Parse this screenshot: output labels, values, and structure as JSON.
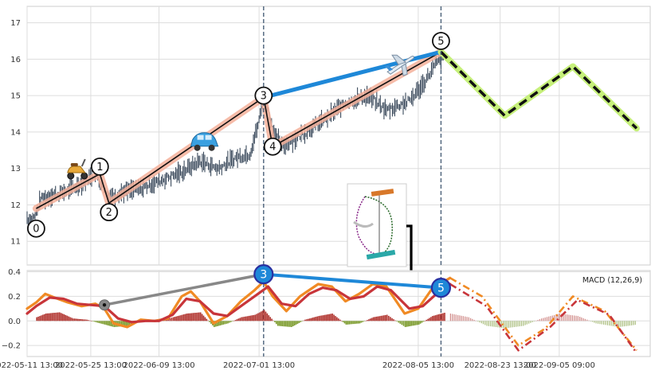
{
  "chart_data": [
    {
      "type": "candlestick",
      "panel": "price",
      "ylim": [
        10.35,
        17.45
      ],
      "y_ticks": [
        11,
        12,
        13,
        14,
        15,
        16,
        17
      ],
      "grid": true,
      "series": [
        {
          "name": "",
          "kind": "price-bars-approx",
          "points": [
            [
              "2022-05-11",
              11.65
            ],
            [
              "2022-05-12",
              11.55
            ],
            [
              "2022-05-13",
              11.75
            ],
            [
              "2022-05-14",
              12.15
            ],
            [
              "2022-05-15",
              12.2
            ],
            [
              "2022-05-16",
              12.25
            ],
            [
              "2022-05-18",
              12.3
            ],
            [
              "2022-05-21",
              12.45
            ],
            [
              "2022-05-23",
              12.6
            ],
            [
              "2022-05-26",
              12.85
            ],
            [
              "2022-05-29",
              12.2
            ],
            [
              "2022-06-01",
              12.35
            ],
            [
              "2022-06-05",
              12.45
            ],
            [
              "2022-06-09",
              12.65
            ],
            [
              "2022-06-14",
              12.9
            ],
            [
              "2022-06-18",
              13.2
            ],
            [
              "2022-06-22",
              13.0
            ],
            [
              "2022-06-26",
              13.3
            ],
            [
              "2022-06-29",
              13.4
            ],
            [
              "2022-07-01",
              14.3
            ],
            [
              "2022-07-02",
              15.05
            ],
            [
              "2022-07-04",
              14.1
            ],
            [
              "2022-07-06",
              13.6
            ],
            [
              "2022-07-10",
              13.9
            ],
            [
              "2022-07-15",
              14.3
            ],
            [
              "2022-07-20",
              14.8
            ],
            [
              "2022-07-25",
              15.0
            ],
            [
              "2022-07-29",
              14.6
            ],
            [
              "2022-08-03",
              14.85
            ],
            [
              "2022-08-06",
              15.3
            ],
            [
              "2022-08-09",
              15.9
            ],
            [
              "2022-08-11",
              16.1
            ]
          ]
        }
      ],
      "overlays": {
        "wave_path": {
          "points": [
            [
              "2022-05-13",
              11.9
            ],
            [
              "2022-05-27",
              12.85
            ],
            [
              "2022-05-29",
              12.05
            ],
            [
              "2022-07-02",
              14.95
            ],
            [
              "2022-07-04",
              13.6
            ],
            [
              "2022-08-10",
              16.2
            ]
          ]
        },
        "wave_labels": [
          {
            "text": "0",
            "x": "2022-05-13",
            "y": 11.35
          },
          {
            "text": "1",
            "x": "2022-05-27",
            "y": 13.05
          },
          {
            "text": "2",
            "x": "2022-05-29",
            "y": 11.8
          },
          {
            "text": "3",
            "x": "2022-07-02",
            "y": 15.0
          },
          {
            "text": "4",
            "x": "2022-07-04",
            "y": 13.6
          },
          {
            "text": "5",
            "x": "2022-08-10",
            "y": 16.5
          }
        ],
        "projection": {
          "style": "dashed",
          "points": [
            [
              "2022-08-10",
              16.2
            ],
            [
              "2022-08-24",
              14.45
            ],
            [
              "2022-09-08",
              15.8
            ],
            [
              "2022-09-22",
              14.1
            ]
          ]
        },
        "connector": {
          "points": [
            [
              "2022-07-02",
              14.95
            ],
            [
              "2022-08-10",
              16.2
            ]
          ]
        },
        "vertical_markers": [
          "2022-07-02",
          "2022-08-10"
        ],
        "emoji_markers": [
          {
            "icon": "scooter",
            "x": "2022-05-22",
            "y": 12.95
          },
          {
            "icon": "car",
            "x": "2022-06-19",
            "y": 13.7
          },
          {
            "icon": "airplane",
            "x": "2022-08-01",
            "y": 15.85
          }
        ]
      }
    },
    {
      "type": "line",
      "panel": "indicator",
      "legend_text": "MACD (12,26,9)",
      "legend_position": "top-right",
      "ylim": [
        -0.29,
        0.41
      ],
      "y_ticks": [
        0.4,
        0.2,
        0.0,
        -0.2
      ],
      "y_tick_labels": [
        "0.4",
        "0.2",
        "0.0",
        "−0.2"
      ],
      "grid": true,
      "series": [
        {
          "name": "",
          "color": "#f08a24",
          "points": [
            [
              "2022-05-11",
              0.1
            ],
            [
              "2022-05-13",
              0.15
            ],
            [
              "2022-05-15",
              0.22
            ],
            [
              "2022-05-17",
              0.19
            ],
            [
              "2022-05-20",
              0.15
            ],
            [
              "2022-05-23",
              0.12
            ],
            [
              "2022-05-26",
              0.14
            ],
            [
              "2022-05-28",
              0.1
            ],
            [
              "2022-05-30",
              -0.02
            ],
            [
              "2022-06-02",
              -0.05
            ],
            [
              "2022-06-05",
              0.01
            ],
            [
              "2022-06-08",
              0.0
            ],
            [
              "2022-06-11",
              0.02
            ],
            [
              "2022-06-14",
              0.2
            ],
            [
              "2022-06-16",
              0.24
            ],
            [
              "2022-06-18",
              0.16
            ],
            [
              "2022-06-21",
              -0.02
            ],
            [
              "2022-06-24",
              0.04
            ],
            [
              "2022-06-27",
              0.16
            ],
            [
              "2022-06-30",
              0.25
            ],
            [
              "2022-07-02",
              0.32
            ],
            [
              "2022-07-04",
              0.2
            ],
            [
              "2022-07-07",
              0.08
            ],
            [
              "2022-07-10",
              0.2
            ],
            [
              "2022-07-14",
              0.3
            ],
            [
              "2022-07-17",
              0.28
            ],
            [
              "2022-07-20",
              0.16
            ],
            [
              "2022-07-23",
              0.22
            ],
            [
              "2022-07-26",
              0.3
            ],
            [
              "2022-07-29",
              0.28
            ],
            [
              "2022-08-02",
              0.06
            ],
            [
              "2022-08-05",
              0.1
            ],
            [
              "2022-08-08",
              0.26
            ],
            [
              "2022-08-12",
              0.35
            ]
          ]
        },
        {
          "name": "",
          "color": "#c8353a",
          "points": [
            [
              "2022-05-11",
              0.06
            ],
            [
              "2022-05-13",
              0.12
            ],
            [
              "2022-05-16",
              0.19
            ],
            [
              "2022-05-19",
              0.18
            ],
            [
              "2022-05-22",
              0.14
            ],
            [
              "2022-05-25",
              0.13
            ],
            [
              "2022-05-28",
              0.12
            ],
            [
              "2022-05-31",
              0.02
            ],
            [
              "2022-06-03",
              -0.01
            ],
            [
              "2022-06-06",
              0.0
            ],
            [
              "2022-06-09",
              0.0
            ],
            [
              "2022-06-12",
              0.05
            ],
            [
              "2022-06-15",
              0.18
            ],
            [
              "2022-06-18",
              0.16
            ],
            [
              "2022-06-21",
              0.06
            ],
            [
              "2022-06-24",
              0.04
            ],
            [
              "2022-06-27",
              0.12
            ],
            [
              "2022-06-30",
              0.2
            ],
            [
              "2022-07-03",
              0.28
            ],
            [
              "2022-07-06",
              0.14
            ],
            [
              "2022-07-09",
              0.12
            ],
            [
              "2022-07-12",
              0.22
            ],
            [
              "2022-07-15",
              0.27
            ],
            [
              "2022-07-18",
              0.25
            ],
            [
              "2022-07-21",
              0.18
            ],
            [
              "2022-07-24",
              0.2
            ],
            [
              "2022-07-27",
              0.28
            ],
            [
              "2022-07-30",
              0.25
            ],
            [
              "2022-08-03",
              0.1
            ],
            [
              "2022-08-06",
              0.12
            ],
            [
              "2022-08-09",
              0.22
            ],
            [
              "2022-08-12",
              0.3
            ]
          ]
        }
      ],
      "histogram_approx": [
        [
          "2022-05-13",
          0.03
        ],
        [
          "2022-05-15",
          0.06
        ],
        [
          "2022-05-18",
          0.07
        ],
        [
          "2022-05-21",
          0.02
        ],
        [
          "2022-05-24",
          0.01
        ],
        [
          "2022-05-27",
          -0.02
        ],
        [
          "2022-05-30",
          -0.05
        ],
        [
          "2022-06-02",
          -0.04
        ],
        [
          "2022-06-05",
          0.01
        ],
        [
          "2022-06-08",
          -0.01
        ],
        [
          "2022-06-12",
          0.03
        ],
        [
          "2022-06-15",
          0.06
        ],
        [
          "2022-06-18",
          0.07
        ],
        [
          "2022-06-21",
          -0.05
        ],
        [
          "2022-06-24",
          -0.02
        ],
        [
          "2022-06-27",
          0.03
        ],
        [
          "2022-06-30",
          0.05
        ],
        [
          "2022-07-02",
          0.09
        ],
        [
          "2022-07-05",
          -0.04
        ],
        [
          "2022-07-08",
          -0.05
        ],
        [
          "2022-07-11",
          0.01
        ],
        [
          "2022-07-14",
          0.04
        ],
        [
          "2022-07-17",
          0.06
        ],
        [
          "2022-07-20",
          -0.03
        ],
        [
          "2022-07-23",
          -0.02
        ],
        [
          "2022-07-26",
          0.03
        ],
        [
          "2022-07-29",
          0.05
        ],
        [
          "2022-08-02",
          -0.05
        ],
        [
          "2022-08-05",
          -0.03
        ],
        [
          "2022-08-08",
          0.04
        ],
        [
          "2022-08-11",
          0.07
        ]
      ],
      "projection": {
        "style": "dash-dot",
        "series": [
          {
            "color": "#f08a24",
            "points": [
              [
                "2022-08-12",
                0.35
              ],
              [
                "2022-08-19",
                0.2
              ],
              [
                "2022-08-27",
                -0.2
              ],
              [
                "2022-09-02",
                -0.06
              ],
              [
                "2022-09-08",
                0.2
              ],
              [
                "2022-09-15",
                0.08
              ],
              [
                "2022-09-22",
                -0.24
              ]
            ]
          },
          {
            "color": "#c8353a",
            "points": [
              [
                "2022-08-12",
                0.3
              ],
              [
                "2022-08-20",
                0.12
              ],
              [
                "2022-08-27",
                -0.24
              ],
              [
                "2022-09-03",
                -0.05
              ],
              [
                "2022-09-09",
                0.17
              ],
              [
                "2022-09-16",
                0.05
              ],
              [
                "2022-09-22",
                -0.26
              ]
            ]
          }
        ],
        "histogram_points": [
          [
            "2022-08-12",
            0.06
          ],
          [
            "2022-08-16",
            0.03
          ],
          [
            "2022-08-20",
            -0.04
          ],
          [
            "2022-08-24",
            -0.06
          ],
          [
            "2022-08-28",
            -0.04
          ],
          [
            "2022-09-01",
            0.02
          ],
          [
            "2022-09-05",
            0.06
          ],
          [
            "2022-09-09",
            0.04
          ],
          [
            "2022-09-13",
            -0.02
          ],
          [
            "2022-09-18",
            -0.05
          ],
          [
            "2022-09-22",
            -0.03
          ]
        ]
      },
      "markers": [
        {
          "text": "3",
          "x": "2022-07-02",
          "y": 0.38
        },
        {
          "text": "5",
          "x": "2022-08-10",
          "y": 0.27
        },
        {
          "text": "",
          "x": "2022-05-28",
          "y": 0.13
        }
      ],
      "marker_lines": [
        [
          [
            "2022-05-28",
            0.13
          ],
          [
            "2022-07-02",
            0.38
          ]
        ],
        [
          [
            "2022-07-02",
            0.38
          ],
          [
            "2022-08-10",
            0.27
          ]
        ]
      ]
    }
  ],
  "x_axis": {
    "tick_labels": [
      {
        "x": "2022-05-11",
        "label": "2022-05-11 13:00"
      },
      {
        "x": "2022-05-25",
        "label": "2022-05-25 13:00"
      },
      {
        "x": "2022-06-09",
        "label": "2022-06-09 13:00"
      },
      {
        "x": "2022-07-01",
        "label": "2022-07-01 13:00"
      },
      {
        "x": "2022-08-05",
        "label": "2022-08-05 13:00"
      },
      {
        "x": "2022-08-23",
        "label": "2022-08-23 13:00"
      },
      {
        "x": "2022-09-05",
        "label": "2022-09-05 09:00"
      }
    ]
  },
  "colors": {
    "price_bars": "#3b4a5c",
    "wave_highlight": "#f4b09a",
    "wave_line": "#111111",
    "connector": "#1e88d8",
    "projection_glow": "#c6f07a",
    "projection_dash": "#111111",
    "marker_fill": "#1e88d8",
    "marker_ring": "#2a2fa0",
    "grid": "#dddddd",
    "hist_positive": "#b0332e",
    "hist_negative": "#7a9a2a"
  }
}
